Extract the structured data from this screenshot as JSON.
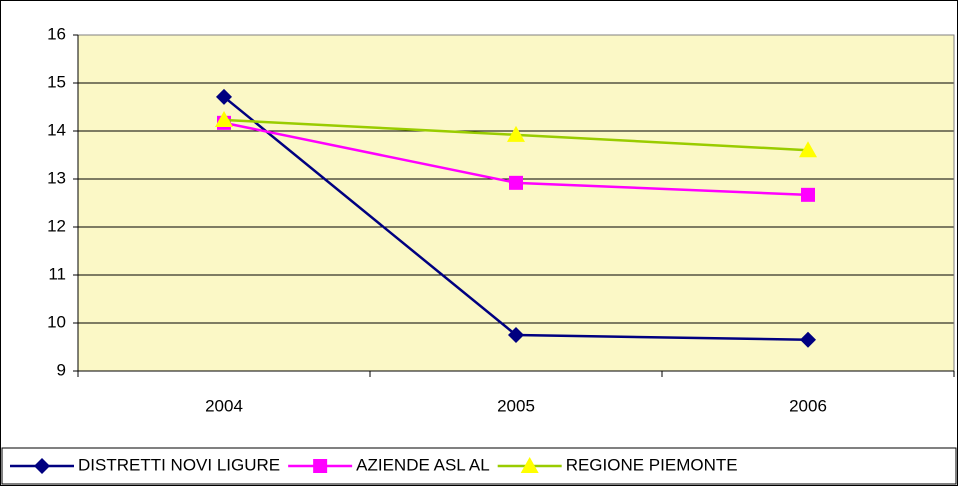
{
  "chart_data": {
    "type": "line",
    "categories": [
      "2004",
      "2005",
      "2006"
    ],
    "series": [
      {
        "name": "DISTRETTI NOVI LIGURE",
        "color": "#000080",
        "marker": "diamond",
        "marker_color": "#000080",
        "values": [
          14.71,
          9.75,
          9.65
        ]
      },
      {
        "name": "AZIENDE ASL AL",
        "color": "#ff00ff",
        "marker": "square",
        "marker_color": "#ff00ff",
        "values": [
          14.17,
          12.92,
          12.67
        ]
      },
      {
        "name": "REGIONE PIEMONTE",
        "color": "#99cc00",
        "marker": "triangle",
        "marker_color": "#ffff00",
        "values": [
          14.23,
          13.92,
          13.6
        ]
      }
    ],
    "ylim": [
      9,
      16
    ],
    "yticks": [
      9,
      10,
      11,
      12,
      13,
      14,
      15,
      16
    ],
    "grid": true,
    "legend": "bottom"
  }
}
